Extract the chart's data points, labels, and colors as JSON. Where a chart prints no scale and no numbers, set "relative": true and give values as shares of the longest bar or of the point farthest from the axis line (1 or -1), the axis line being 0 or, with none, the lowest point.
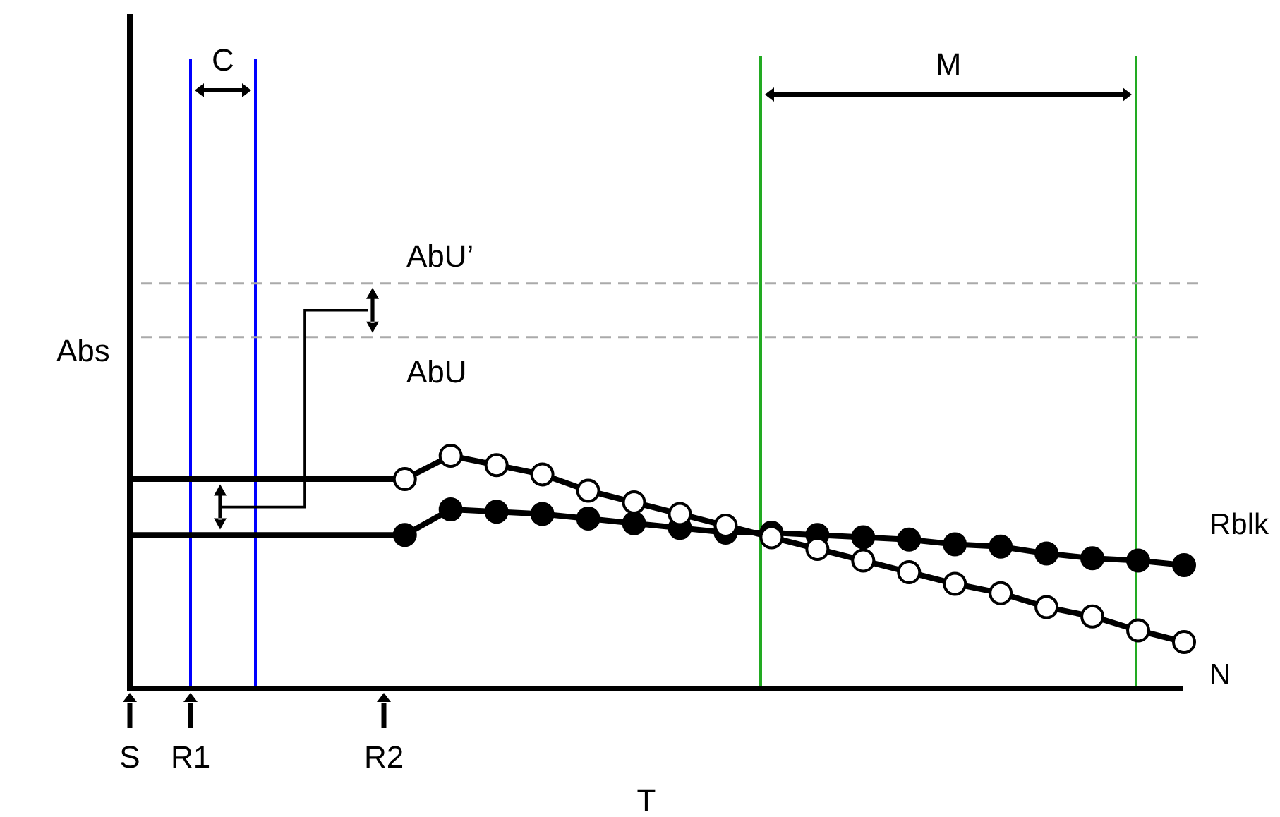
{
  "chart_data": {
    "type": "line",
    "relative": true,
    "xlabel": "T",
    "ylabel": "Abs",
    "categories": [
      null,
      null,
      null,
      null,
      null,
      null,
      null,
      null,
      null,
      null,
      null,
      null,
      null,
      null,
      null,
      null,
      null,
      null,
      null,
      null,
      null,
      null,
      null,
      null
    ],
    "series": [
      {
        "name": "N",
        "color": "#000000",
        "marker": "circle",
        "values": [
          0.9,
          0.9,
          0.9,
          0.9,
          0.9,
          0.9,
          0.9,
          1.0,
          0.96,
          0.92,
          0.85,
          0.8,
          0.75,
          0.7,
          0.65,
          0.6,
          0.55,
          0.5,
          0.45,
          0.41,
          0.35,
          0.31,
          0.25,
          0.2
        ]
      },
      {
        "name": "Rblk",
        "color": "#000000",
        "marker": "circle",
        "values": [
          0.66,
          0.66,
          0.66,
          0.66,
          0.66,
          0.66,
          0.66,
          0.77,
          0.76,
          0.75,
          0.73,
          0.71,
          0.69,
          0.67,
          0.67,
          0.66,
          0.65,
          0.64,
          0.62,
          0.61,
          0.58,
          0.56,
          0.55,
          0.53
        ]
      }
    ],
    "ref_lines": [
      {
        "axis": "y",
        "value": 1.74,
        "label": "AbU’",
        "color": "#aaaaaa",
        "line_style": "dashed"
      },
      {
        "axis": "y",
        "value": 1.51,
        "label": "AbU",
        "color": "#aaaaaa",
        "line_style": "dashed"
      }
    ],
    "annotations": [
      "C",
      "M",
      "S",
      "R1",
      "R2"
    ]
  }
}
